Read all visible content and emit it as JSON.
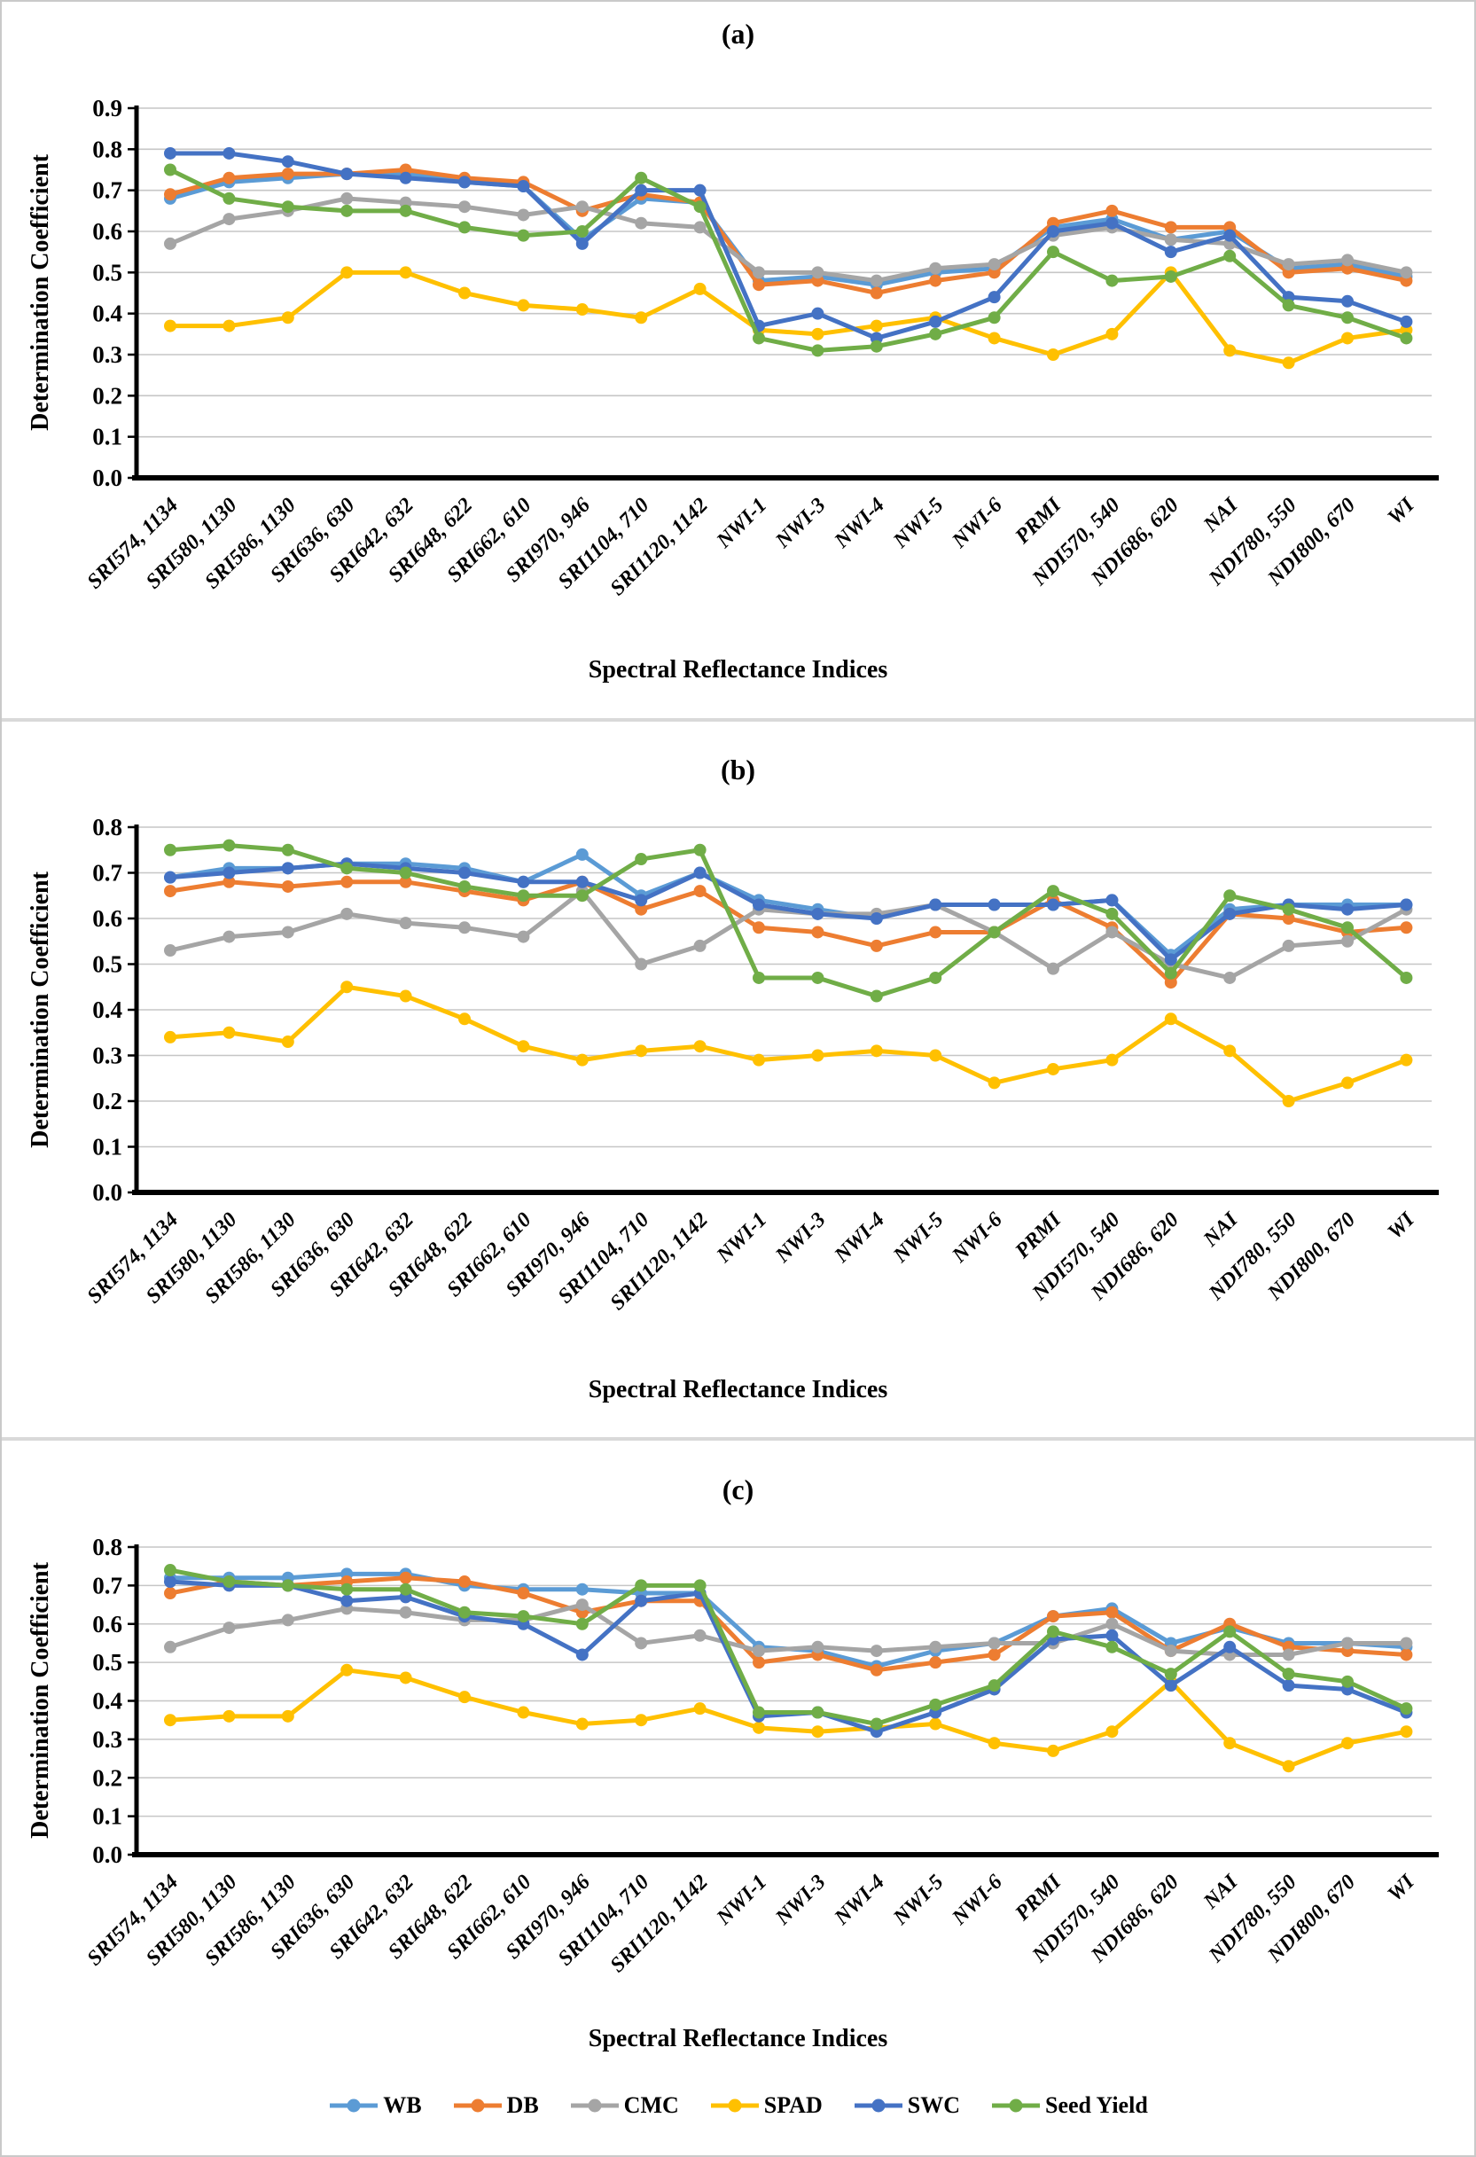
{
  "figure_ylabel": "Determination Coefficient",
  "figure_xlabel": "Spectral Reflectance Indices",
  "legend": {
    "position": "bottom",
    "items": [
      {
        "label": "WB",
        "color": "#5B9BD5"
      },
      {
        "label": "DB",
        "color": "#ED7D31"
      },
      {
        "label": "CMC",
        "color": "#A5A5A5"
      },
      {
        "label": "SPAD",
        "color": "#FFC000"
      },
      {
        "label": "SWC",
        "color": "#4472C4"
      },
      {
        "label": "Seed Yield",
        "color": "#70AD47"
      }
    ]
  },
  "chart_data": [
    {
      "type": "line",
      "title": "(a)",
      "xlabel": "Spectral Reflectance Indices",
      "ylabel": "Determination Coefficient",
      "ylim": [
        0.0,
        0.9
      ],
      "ytick_step": 0.1,
      "grid": true,
      "legend_position": "bottom",
      "categories": [
        "SRI574, 1134",
        "SRI580, 1130",
        "SRI586, 1130",
        "SRI636, 630",
        "SRI642, 632",
        "SRI648, 622",
        "SRI662, 610",
        "SRI970, 946",
        "SRI1104, 710",
        "SRI1120, 1142",
        "NWI-1",
        "NWI-3",
        "NWI-4",
        "NWI-5",
        "NWI-6",
        "PRMI",
        "NDI570, 540",
        "NDI686, 620",
        "NAI",
        "NDI780, 550",
        "NDI800, 670",
        "WI"
      ],
      "series": [
        {
          "name": "WB",
          "color": "#5B9BD5",
          "values": [
            0.68,
            0.72,
            0.73,
            0.74,
            0.74,
            0.72,
            0.71,
            0.58,
            0.68,
            0.67,
            0.48,
            0.49,
            0.47,
            0.5,
            0.51,
            0.61,
            0.63,
            0.58,
            0.6,
            0.51,
            0.52,
            0.49
          ]
        },
        {
          "name": "DB",
          "color": "#ED7D31",
          "values": [
            0.69,
            0.73,
            0.74,
            0.74,
            0.75,
            0.73,
            0.72,
            0.65,
            0.69,
            0.67,
            0.47,
            0.48,
            0.45,
            0.48,
            0.5,
            0.62,
            0.65,
            0.61,
            0.61,
            0.5,
            0.51,
            0.48
          ]
        },
        {
          "name": "CMC",
          "color": "#A5A5A5",
          "values": [
            0.57,
            0.63,
            0.65,
            0.68,
            0.67,
            0.66,
            0.64,
            0.66,
            0.62,
            0.61,
            0.5,
            0.5,
            0.48,
            0.51,
            0.52,
            0.59,
            0.61,
            0.58,
            0.57,
            0.52,
            0.53,
            0.5
          ]
        },
        {
          "name": "SPAD",
          "color": "#FFC000",
          "values": [
            0.37,
            0.37,
            0.39,
            0.5,
            0.5,
            0.45,
            0.42,
            0.41,
            0.39,
            0.46,
            0.36,
            0.35,
            0.37,
            0.39,
            0.34,
            0.3,
            0.35,
            0.5,
            0.31,
            0.28,
            0.34,
            0.36
          ]
        },
        {
          "name": "SWC",
          "color": "#4472C4",
          "values": [
            0.79,
            0.79,
            0.77,
            0.74,
            0.73,
            0.72,
            0.71,
            0.57,
            0.7,
            0.7,
            0.37,
            0.4,
            0.34,
            0.38,
            0.44,
            0.6,
            0.62,
            0.55,
            0.59,
            0.44,
            0.43,
            0.38
          ]
        },
        {
          "name": "Seed Yield",
          "color": "#70AD47",
          "values": [
            0.75,
            0.68,
            0.66,
            0.65,
            0.65,
            0.61,
            0.59,
            0.6,
            0.73,
            0.66,
            0.34,
            0.31,
            0.32,
            0.35,
            0.39,
            0.55,
            0.48,
            0.49,
            0.54,
            0.42,
            0.39,
            0.34
          ]
        }
      ]
    },
    {
      "type": "line",
      "title": "(b)",
      "xlabel": "Spectral Reflectance Indices",
      "ylabel": "Determination Coefficient",
      "ylim": [
        0.0,
        0.8
      ],
      "ytick_step": 0.1,
      "grid": true,
      "legend_position": "bottom",
      "categories": [
        "SRI574, 1134",
        "SRI580, 1130",
        "SRI586, 1130",
        "SRI636, 630",
        "SRI642, 632",
        "SRI648, 622",
        "SRI662, 610",
        "SRI970, 946",
        "SRI1104, 710",
        "SRI1120, 1142",
        "NWI-1",
        "NWI-3",
        "NWI-4",
        "NWI-5",
        "NWI-6",
        "PRMI",
        "NDI570, 540",
        "NDI686, 620",
        "NAI",
        "NDI780, 550",
        "NDI800, 670",
        "WI"
      ],
      "series": [
        {
          "name": "WB",
          "color": "#5B9BD5",
          "values": [
            0.69,
            0.71,
            0.71,
            0.72,
            0.72,
            0.71,
            0.68,
            0.74,
            0.65,
            0.7,
            0.64,
            0.62,
            0.6,
            0.63,
            0.63,
            0.63,
            0.64,
            0.52,
            0.62,
            0.63,
            0.63,
            0.63
          ]
        },
        {
          "name": "DB",
          "color": "#ED7D31",
          "values": [
            0.66,
            0.68,
            0.67,
            0.68,
            0.68,
            0.66,
            0.64,
            0.68,
            0.62,
            0.66,
            0.58,
            0.57,
            0.54,
            0.57,
            0.57,
            0.64,
            0.58,
            0.46,
            0.61,
            0.6,
            0.57,
            0.58
          ]
        },
        {
          "name": "CMC",
          "color": "#A5A5A5",
          "values": [
            0.53,
            0.56,
            0.57,
            0.61,
            0.59,
            0.58,
            0.56,
            0.66,
            0.5,
            0.54,
            0.62,
            0.61,
            0.61,
            0.63,
            0.57,
            0.49,
            0.57,
            0.5,
            0.47,
            0.54,
            0.55,
            0.62
          ]
        },
        {
          "name": "SPAD",
          "color": "#FFC000",
          "values": [
            0.34,
            0.35,
            0.33,
            0.45,
            0.43,
            0.38,
            0.32,
            0.29,
            0.31,
            0.32,
            0.29,
            0.3,
            0.31,
            0.3,
            0.24,
            0.27,
            0.29,
            0.38,
            0.31,
            0.2,
            0.24,
            0.29
          ]
        },
        {
          "name": "SWC",
          "color": "#4472C4",
          "values": [
            0.69,
            0.7,
            0.71,
            0.72,
            0.71,
            0.7,
            0.68,
            0.68,
            0.64,
            0.7,
            0.63,
            0.61,
            0.6,
            0.63,
            0.63,
            0.63,
            0.64,
            0.51,
            0.61,
            0.63,
            0.62,
            0.63
          ]
        },
        {
          "name": "Seed Yield",
          "color": "#70AD47",
          "values": [
            0.75,
            0.76,
            0.75,
            0.71,
            0.7,
            0.67,
            0.65,
            0.65,
            0.73,
            0.75,
            0.47,
            0.47,
            0.43,
            0.47,
            0.57,
            0.66,
            0.61,
            0.48,
            0.65,
            0.62,
            0.58,
            0.47
          ]
        }
      ]
    },
    {
      "type": "line",
      "title": "(c)",
      "xlabel": "Spectral Reflectance Indices",
      "ylabel": "Determination Coefficient",
      "ylim": [
        0.0,
        0.8
      ],
      "ytick_step": 0.1,
      "grid": true,
      "legend_position": "bottom",
      "categories": [
        "SRI574, 1134",
        "SRI580, 1130",
        "SRI586, 1130",
        "SRI636, 630",
        "SRI642, 632",
        "SRI648, 622",
        "SRI662, 610",
        "SRI970, 946",
        "SRI1104, 710",
        "SRI1120, 1142",
        "NWI-1",
        "NWI-3",
        "NWI-4",
        "NWI-5",
        "NWI-6",
        "PRMI",
        "NDI570, 540",
        "NDI686, 620",
        "NAI",
        "NDI780, 550",
        "NDI800, 670",
        "WI"
      ],
      "series": [
        {
          "name": "WB",
          "color": "#5B9BD5",
          "values": [
            0.72,
            0.72,
            0.72,
            0.73,
            0.73,
            0.7,
            0.69,
            0.69,
            0.68,
            0.68,
            0.54,
            0.53,
            0.49,
            0.53,
            0.55,
            0.62,
            0.64,
            0.55,
            0.59,
            0.55,
            0.55,
            0.54
          ]
        },
        {
          "name": "DB",
          "color": "#ED7D31",
          "values": [
            0.68,
            0.71,
            0.7,
            0.71,
            0.72,
            0.71,
            0.68,
            0.63,
            0.66,
            0.66,
            0.5,
            0.52,
            0.48,
            0.5,
            0.52,
            0.62,
            0.63,
            0.53,
            0.6,
            0.54,
            0.53,
            0.52
          ]
        },
        {
          "name": "CMC",
          "color": "#A5A5A5",
          "values": [
            0.54,
            0.59,
            0.61,
            0.64,
            0.63,
            0.61,
            0.61,
            0.65,
            0.55,
            0.57,
            0.53,
            0.54,
            0.53,
            0.54,
            0.55,
            0.55,
            0.6,
            0.53,
            0.52,
            0.52,
            0.55,
            0.55
          ]
        },
        {
          "name": "SPAD",
          "color": "#FFC000",
          "values": [
            0.35,
            0.36,
            0.36,
            0.48,
            0.46,
            0.41,
            0.37,
            0.34,
            0.35,
            0.38,
            0.33,
            0.32,
            0.33,
            0.34,
            0.29,
            0.27,
            0.32,
            0.45,
            0.29,
            0.23,
            0.29,
            0.32
          ]
        },
        {
          "name": "SWC",
          "color": "#4472C4",
          "values": [
            0.71,
            0.7,
            0.7,
            0.66,
            0.67,
            0.62,
            0.6,
            0.52,
            0.66,
            0.68,
            0.36,
            0.37,
            0.32,
            0.37,
            0.43,
            0.56,
            0.57,
            0.44,
            0.54,
            0.44,
            0.43,
            0.37
          ]
        },
        {
          "name": "Seed Yield",
          "color": "#70AD47",
          "values": [
            0.74,
            0.71,
            0.7,
            0.69,
            0.69,
            0.63,
            0.62,
            0.6,
            0.7,
            0.7,
            0.37,
            0.37,
            0.34,
            0.39,
            0.44,
            0.58,
            0.54,
            0.47,
            0.58,
            0.47,
            0.45,
            0.38
          ]
        }
      ]
    }
  ]
}
